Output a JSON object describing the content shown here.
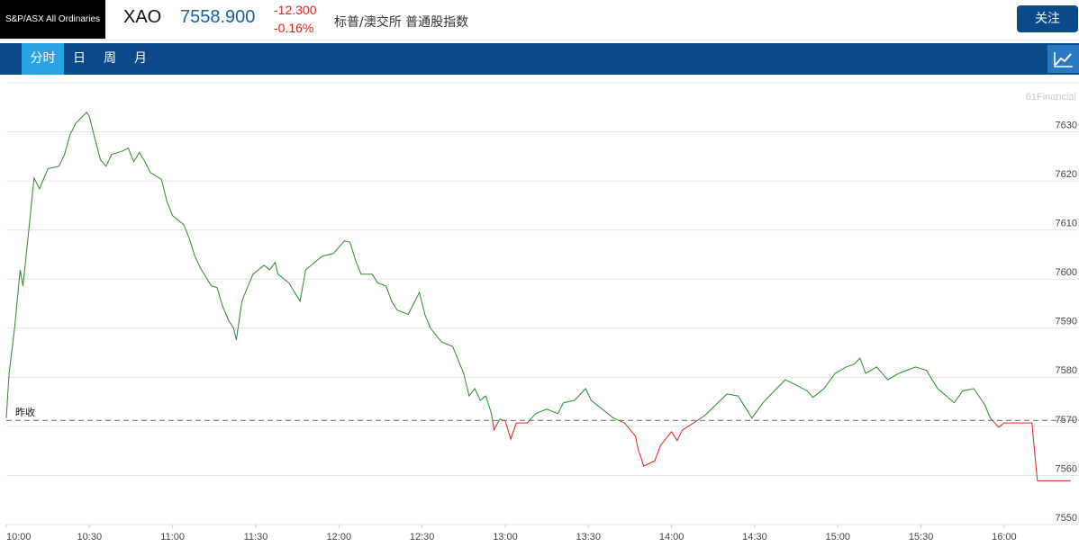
{
  "header": {
    "logo": "S&P/ASX All Ordinaries",
    "symbol": "XAO",
    "price": "7558.900",
    "change": "-12.300",
    "change_pct": "-0.16%",
    "name": "标普/澳交所 普通股指数",
    "follow_button": "关注"
  },
  "tabs": [
    "分时",
    "日",
    "周",
    "月"
  ],
  "chart_data": {
    "type": "line",
    "watermark": "61Financial",
    "x": [
      "10:00",
      "10:01",
      "10:03",
      "10:05",
      "10:06",
      "10:08",
      "10:10",
      "10:12",
      "10:15",
      "10:19",
      "10:21",
      "10:23",
      "10:25",
      "10:29",
      "10:30",
      "10:32",
      "10:34",
      "10:36",
      "10:38",
      "10:42",
      "10:44",
      "10:46",
      "10:48",
      "10:50",
      "10:52",
      "10:56",
      "10:58",
      "11:00",
      "11:04",
      "11:06",
      "11:08",
      "11:10",
      "11:14",
      "11:16",
      "11:18",
      "11:20",
      "11:22",
      "11:23",
      "11:25",
      "11:27",
      "11:29",
      "11:33",
      "11:35",
      "11:37",
      "11:38",
      "11:42",
      "11:44",
      "11:46",
      "11:48",
      "11:50",
      "11:54",
      "11:58",
      "12:02",
      "12:04",
      "12:06",
      "12:08",
      "12:12",
      "12:14",
      "12:17",
      "12:19",
      "12:21",
      "12:25",
      "12:29",
      "12:31",
      "12:33",
      "12:37",
      "12:41",
      "12:43",
      "12:45",
      "12:47",
      "12:49",
      "12:51",
      "12:53",
      "12:55",
      "12:56",
      "12:58",
      "13:00",
      "13:02",
      "13:04",
      "13:08",
      "13:11",
      "13:15",
      "13:19",
      "13:21",
      "13:25",
      "13:29",
      "13:31",
      "13:35",
      "13:39",
      "13:43",
      "13:47",
      "13:48",
      "13:50",
      "13:54",
      "13:56",
      "14:00",
      "14:02",
      "14:04",
      "14:08",
      "14:12",
      "14:16",
      "14:20",
      "14:24",
      "14:27",
      "14:29",
      "14:33",
      "14:37",
      "14:41",
      "14:45",
      "14:49",
      "14:51",
      "14:55",
      "14:59",
      "15:03",
      "15:06",
      "15:08",
      "15:10",
      "15:14",
      "15:18",
      "15:22",
      "15:28",
      "15:32",
      "15:36",
      "15:42",
      "15:45",
      "15:49",
      "15:53",
      "15:55",
      "15:58",
      "16:00",
      "16:10",
      "16:12",
      "16:24"
    ],
    "series": [
      {
        "color": "#2b8a2b",
        "color_below": "#e0201c",
        "values": [
          7571.7,
          7580.8,
          7590.0,
          7601.9,
          7598.6,
          7609.3,
          7620.6,
          7618.4,
          7622.5,
          7623.0,
          7625.4,
          7629.4,
          7631.7,
          7634.0,
          7633.1,
          7628.5,
          7624.3,
          7623.0,
          7625.4,
          7626.1,
          7626.7,
          7623.9,
          7625.8,
          7623.9,
          7621.7,
          7620.3,
          7615.7,
          7612.9,
          7611.1,
          7608.3,
          7604.7,
          7602.3,
          7598.6,
          7598.3,
          7594.6,
          7591.8,
          7590.0,
          7587.6,
          7595.5,
          7598.3,
          7601.0,
          7602.8,
          7601.9,
          7603.4,
          7601.0,
          7599.2,
          7597.3,
          7595.5,
          7601.9,
          7602.8,
          7604.7,
          7605.2,
          7607.8,
          7607.5,
          7603.8,
          7601.0,
          7601.0,
          7599.2,
          7598.6,
          7595.5,
          7593.7,
          7592.8,
          7597.3,
          7592.8,
          7590.0,
          7587.2,
          7586.3,
          7583.6,
          7580.8,
          7576.2,
          7577.7,
          7575.3,
          7576.2,
          7572.6,
          7569.3,
          7571.5,
          7571.1,
          7567.4,
          7570.7,
          7570.7,
          7572.6,
          7573.5,
          7572.6,
          7574.8,
          7575.3,
          7577.7,
          7575.3,
          7573.5,
          7571.7,
          7570.7,
          7568.0,
          7565.2,
          7561.9,
          7563.0,
          7566.1,
          7568.9,
          7567.1,
          7569.3,
          7570.7,
          7572.2,
          7574.4,
          7576.6,
          7576.2,
          7573.5,
          7571.7,
          7574.8,
          7577.2,
          7579.5,
          7578.4,
          7577.2,
          7575.9,
          7577.7,
          7580.8,
          7582.1,
          7582.7,
          7583.9,
          7580.8,
          7582.1,
          7579.5,
          7580.8,
          7582.1,
          7581.4,
          7577.7,
          7574.8,
          7577.2,
          7577.7,
          7574.4,
          7571.7,
          7569.8,
          7570.7,
          7570.7,
          7558.9,
          7558.9
        ]
      }
    ],
    "reference_line": {
      "value": 7571.2,
      "label": "昨收"
    },
    "xlim": [
      "10:00",
      "16:27"
    ],
    "xticks": [
      "10:00",
      "10:30",
      "11:00",
      "11:30",
      "12:00",
      "12:30",
      "13:00",
      "13:30",
      "14:00",
      "14:30",
      "15:00",
      "15:30",
      "16:00"
    ],
    "ylim": [
      7550,
      7640
    ],
    "yticks": [
      7550,
      7560,
      7570,
      7580,
      7590,
      7600,
      7610,
      7620,
      7630
    ],
    "grid": true
  }
}
